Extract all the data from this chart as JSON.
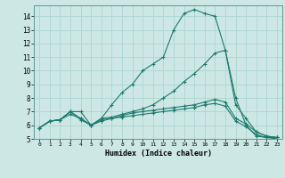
{
  "xlabel": "Humidex (Indice chaleur)",
  "background_color": "#cde8e4",
  "grid_color": "#b0d8d2",
  "line_color": "#1e7a6e",
  "xlim": [
    -0.5,
    23.5
  ],
  "ylim": [
    5,
    14.8
  ],
  "xticks": [
    0,
    1,
    2,
    3,
    4,
    5,
    6,
    7,
    8,
    9,
    10,
    11,
    12,
    13,
    14,
    15,
    16,
    17,
    18,
    19,
    20,
    21,
    22,
    23
  ],
  "yticks": [
    5,
    6,
    7,
    8,
    9,
    10,
    11,
    12,
    13,
    14
  ],
  "series": [
    {
      "x": [
        0,
        1,
        2,
        3,
        4,
        5,
        6,
        7,
        8,
        9,
        10,
        11,
        12,
        13,
        14,
        15,
        16,
        17,
        18,
        19,
        20,
        21,
        22,
        23
      ],
      "y": [
        5.8,
        6.3,
        6.4,
        7.0,
        7.0,
        6.0,
        6.5,
        7.5,
        8.4,
        9.0,
        10.0,
        10.5,
        11.0,
        13.0,
        14.2,
        14.5,
        14.2,
        14.0,
        11.5,
        8.0,
        6.0,
        5.2,
        5.1,
        5.1
      ]
    },
    {
      "x": [
        0,
        1,
        2,
        3,
        4,
        5,
        6,
        7,
        8,
        9,
        10,
        11,
        12,
        13,
        14,
        15,
        16,
        17,
        18,
        19,
        20,
        21,
        22,
        23
      ],
      "y": [
        5.8,
        6.3,
        6.4,
        7.0,
        6.5,
        6.0,
        6.5,
        6.6,
        6.8,
        7.0,
        7.2,
        7.5,
        8.0,
        8.5,
        9.2,
        9.8,
        10.5,
        11.3,
        11.5,
        7.5,
        6.5,
        5.5,
        5.2,
        5.1
      ]
    },
    {
      "x": [
        0,
        1,
        2,
        3,
        4,
        5,
        6,
        7,
        8,
        9,
        10,
        11,
        12,
        13,
        14,
        15,
        16,
        17,
        18,
        19,
        20,
        21,
        22,
        23
      ],
      "y": [
        5.8,
        6.3,
        6.4,
        7.0,
        6.4,
        6.0,
        6.4,
        6.5,
        6.7,
        6.9,
        7.0,
        7.1,
        7.2,
        7.3,
        7.4,
        7.5,
        7.7,
        7.9,
        7.7,
        6.5,
        6.1,
        5.5,
        5.2,
        5.1
      ]
    },
    {
      "x": [
        0,
        1,
        2,
        3,
        4,
        5,
        6,
        7,
        8,
        9,
        10,
        11,
        12,
        13,
        14,
        15,
        16,
        17,
        18,
        19,
        20,
        21,
        22,
        23
      ],
      "y": [
        5.8,
        6.3,
        6.4,
        6.8,
        6.5,
        6.0,
        6.3,
        6.5,
        6.6,
        6.7,
        6.8,
        6.9,
        7.0,
        7.1,
        7.2,
        7.3,
        7.5,
        7.6,
        7.4,
        6.3,
        5.9,
        5.3,
        5.1,
        5.0
      ]
    }
  ]
}
